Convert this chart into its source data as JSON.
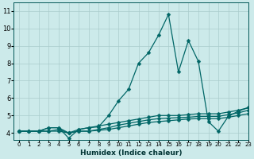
{
  "title": "",
  "xlabel": "Humidex (Indice chaleur)",
  "xlim": [
    -0.5,
    23
  ],
  "ylim": [
    3.6,
    11.5
  ],
  "background_color": "#cceaea",
  "grid_color": "#aacccc",
  "line_color": "#006666",
  "xticks": [
    0,
    1,
    2,
    3,
    4,
    5,
    6,
    7,
    8,
    9,
    10,
    11,
    12,
    13,
    14,
    15,
    16,
    17,
    18,
    19,
    20,
    21,
    22,
    23
  ],
  "yticks": [
    4,
    5,
    6,
    7,
    8,
    9,
    10,
    11
  ],
  "curves": [
    [
      4.1,
      4.1,
      4.1,
      4.3,
      4.3,
      3.7,
      4.2,
      4.3,
      4.35,
      5.0,
      5.85,
      6.5,
      8.0,
      8.6,
      9.6,
      10.8,
      7.5,
      9.3,
      8.1,
      4.65,
      4.1,
      4.95,
      5.25,
      5.45
    ],
    [
      4.1,
      4.1,
      4.1,
      4.3,
      4.3,
      4.0,
      4.2,
      4.3,
      4.4,
      4.5,
      4.6,
      4.7,
      4.8,
      4.9,
      5.0,
      5.0,
      5.0,
      5.05,
      5.1,
      5.1,
      5.1,
      5.2,
      5.3,
      5.45
    ],
    [
      4.1,
      4.1,
      4.1,
      4.1,
      4.2,
      4.0,
      4.1,
      4.1,
      4.2,
      4.3,
      4.45,
      4.55,
      4.65,
      4.75,
      4.82,
      4.85,
      4.88,
      4.9,
      4.95,
      4.95,
      4.95,
      5.05,
      5.15,
      5.3
    ],
    [
      4.1,
      4.1,
      4.1,
      4.1,
      4.1,
      4.0,
      4.1,
      4.1,
      4.15,
      4.2,
      4.3,
      4.4,
      4.5,
      4.6,
      4.65,
      4.7,
      4.75,
      4.8,
      4.82,
      4.82,
      4.82,
      4.9,
      5.0,
      5.1
    ]
  ],
  "markersize": 2.5,
  "linewidth": 0.9
}
